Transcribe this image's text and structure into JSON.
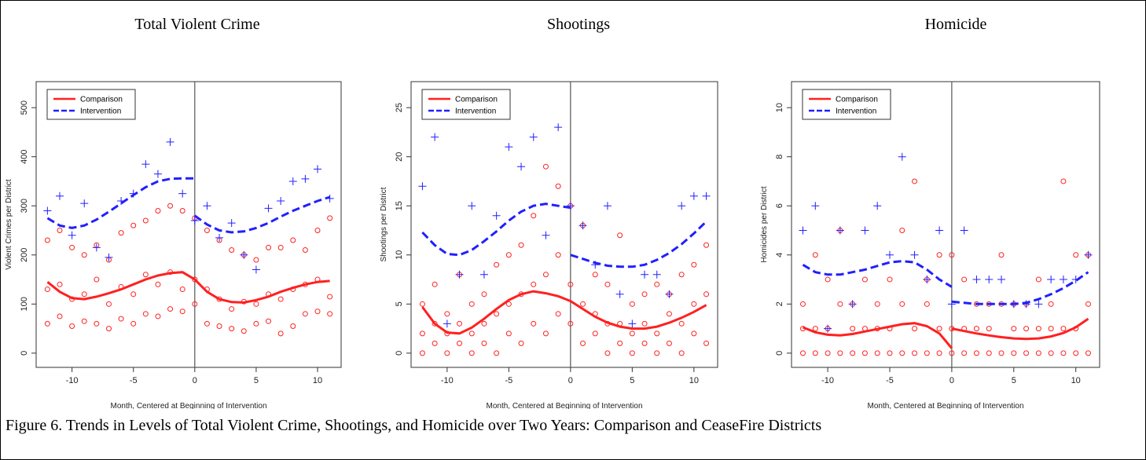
{
  "caption": "Figure 6.  Trends in Levels of Total Violent Crime, Shootings, and Homicide over Two Years:  Comparison and CeaseFire Districts",
  "chart_data": [
    {
      "type": "scatter",
      "title": "Total Violent Crime",
      "x_label": "Month, Centered at Beginning of Intervention",
      "y_label": "Violent Crimes per District",
      "xlim": [
        -12.92,
        11.92
      ],
      "xticks": [
        -10,
        -5,
        0,
        5,
        10
      ],
      "ylim": [
        -29,
        553
      ],
      "yticks": [
        0,
        100,
        200,
        300,
        400,
        500
      ],
      "vline": 0,
      "legend": "upper left",
      "series": [
        {
          "name": "Comparison",
          "color": "#ff2020",
          "marker": "circle",
          "line_style": "solid",
          "x": [
            -12,
            -12,
            -12,
            -11,
            -11,
            -11,
            -10,
            -10,
            -10,
            -9,
            -9,
            -9,
            -8,
            -8,
            -8,
            -7,
            -7,
            -7,
            -6,
            -6,
            -6,
            -5,
            -5,
            -5,
            -4,
            -4,
            -4,
            -3,
            -3,
            -3,
            -2,
            -2,
            -2,
            -1,
            -1,
            -1,
            0,
            0,
            0,
            1,
            1,
            1,
            2,
            2,
            2,
            3,
            3,
            3,
            4,
            4,
            4,
            5,
            5,
            5,
            6,
            6,
            6,
            7,
            7,
            7,
            8,
            8,
            8,
            9,
            9,
            9,
            10,
            10,
            10,
            11,
            11,
            11
          ],
          "values": [
            60,
            130,
            230,
            75,
            140,
            250,
            55,
            110,
            215,
            65,
            120,
            200,
            60,
            150,
            220,
            50,
            100,
            190,
            70,
            135,
            245,
            60,
            120,
            260,
            80,
            160,
            270,
            75,
            140,
            290,
            90,
            165,
            300,
            85,
            130,
            290,
            100,
            150,
            275,
            60,
            130,
            250,
            55,
            110,
            230,
            50,
            90,
            210,
            45,
            105,
            200,
            60,
            100,
            190,
            65,
            120,
            215,
            40,
            110,
            215,
            55,
            130,
            230,
            80,
            140,
            210,
            85,
            150,
            250,
            80,
            115,
            275
          ],
          "fit_x": [
            -12,
            -11,
            -10,
            -9,
            -8,
            -7,
            -6,
            -5,
            -4,
            -3,
            -2,
            -1,
            0,
            1,
            2,
            3,
            4,
            5,
            6,
            7,
            8,
            9,
            10,
            11
          ],
          "fit_values": [
            145,
            125,
            112,
            110,
            115,
            122,
            130,
            140,
            150,
            158,
            163,
            165,
            150,
            125,
            110,
            104,
            103,
            108,
            115,
            125,
            133,
            140,
            145,
            147
          ]
        },
        {
          "name": "Intervention",
          "color": "#2020ff",
          "marker": "plus",
          "line_style": "dashed",
          "x": [
            -12,
            -11,
            -10,
            -9,
            -8,
            -7,
            -6,
            -5,
            -4,
            -3,
            -2,
            -1,
            0,
            1,
            2,
            3,
            4,
            5,
            6,
            7,
            8,
            9,
            10,
            11
          ],
          "values": [
            290,
            320,
            240,
            305,
            215,
            195,
            310,
            325,
            385,
            365,
            430,
            325,
            270,
            300,
            235,
            265,
            200,
            170,
            295,
            310,
            350,
            355,
            375,
            315
          ],
          "fit_x": [
            -12,
            -11,
            -10,
            -9,
            -8,
            -7,
            -6,
            -5,
            -4,
            -3,
            -2,
            -1,
            0,
            null,
            0,
            1,
            2,
            3,
            4,
            5,
            6,
            7,
            8,
            9,
            10,
            11
          ],
          "fit_values": [
            275,
            260,
            255,
            260,
            272,
            288,
            305,
            322,
            338,
            350,
            355,
            356,
            356,
            null,
            280,
            262,
            250,
            246,
            248,
            255,
            265,
            278,
            290,
            300,
            310,
            318
          ]
        }
      ]
    },
    {
      "type": "scatter",
      "title": "Shootings",
      "x_label": "Month, Centered at Beginning of Intervention",
      "y_label": "Shootings per District",
      "xlim": [
        -12.92,
        11.92
      ],
      "xticks": [
        -10,
        -5,
        0,
        5,
        10
      ],
      "ylim": [
        -1.45,
        27.65
      ],
      "yticks": [
        0,
        5,
        10,
        15,
        20,
        25
      ],
      "vline": 0,
      "legend": "upper left",
      "series": [
        {
          "name": "Comparison",
          "color": "#ff2020",
          "marker": "circle",
          "line_style": "solid",
          "x": [
            -12,
            -12,
            -12,
            -11,
            -11,
            -11,
            -10,
            -10,
            -10,
            -9,
            -9,
            -9,
            -8,
            -8,
            -8,
            -7,
            -7,
            -7,
            -6,
            -6,
            -6,
            -5,
            -5,
            -5,
            -4,
            -4,
            -4,
            -3,
            -3,
            -3,
            -2,
            -2,
            -2,
            -1,
            -1,
            -1,
            0,
            0,
            0,
            1,
            1,
            1,
            2,
            2,
            2,
            3,
            3,
            3,
            4,
            4,
            4,
            5,
            5,
            5,
            6,
            6,
            6,
            7,
            7,
            7,
            8,
            8,
            8,
            9,
            9,
            9,
            10,
            10,
            10,
            11,
            11,
            11
          ],
          "values": [
            0,
            2,
            5,
            1,
            3,
            7,
            0,
            2,
            4,
            1,
            3,
            8,
            0,
            2,
            5,
            1,
            3,
            6,
            0,
            4,
            9,
            2,
            5,
            10,
            1,
            6,
            11,
            3,
            7,
            14,
            2,
            8,
            19,
            4,
            10,
            17,
            3,
            7,
            15,
            1,
            5,
            13,
            2,
            4,
            8,
            0,
            3,
            7,
            1,
            3,
            12,
            0,
            2,
            5,
            1,
            3,
            6,
            0,
            2,
            7,
            1,
            4,
            6,
            0,
            3,
            8,
            2,
            5,
            9,
            1,
            6,
            11
          ],
          "fit_x": [
            -12,
            -11,
            -10,
            -9,
            -8,
            -7,
            -6,
            -5,
            -4,
            -3,
            -2,
            -1,
            0,
            1,
            2,
            3,
            4,
            5,
            6,
            7,
            8,
            9,
            10,
            11
          ],
          "fit_values": [
            4.7,
            3,
            2.1,
            2,
            2.6,
            3.5,
            4.5,
            5.4,
            6,
            6.3,
            6.1,
            5.8,
            5.3,
            4.5,
            3.7,
            3.1,
            2.7,
            2.5,
            2.5,
            2.7,
            3.1,
            3.6,
            4.2,
            4.9
          ]
        },
        {
          "name": "Intervention",
          "color": "#2020ff",
          "marker": "plus",
          "line_style": "dashed",
          "x": [
            -12,
            -11,
            -10,
            -9,
            -8,
            -7,
            -6,
            -5,
            -4,
            -3,
            -2,
            -1,
            0,
            1,
            2,
            3,
            4,
            5,
            6,
            7,
            8,
            9,
            10,
            11
          ],
          "values": [
            17,
            22,
            3,
            8,
            15,
            8,
            14,
            21,
            19,
            22,
            12,
            23,
            15,
            13,
            9,
            15,
            6,
            3,
            8,
            8,
            6,
            15,
            16,
            16
          ],
          "fit_x": [
            -12,
            -11,
            -10,
            -9,
            -8,
            -7,
            -6,
            -5,
            -4,
            -3,
            -2,
            -1,
            0,
            null,
            0,
            1,
            2,
            3,
            4,
            5,
            6,
            7,
            8,
            9,
            10,
            11
          ],
          "fit_values": [
            12.3,
            11,
            10.1,
            10,
            10.5,
            11.4,
            12.4,
            13.5,
            14.4,
            15,
            15.2,
            15,
            14.8,
            null,
            10,
            9.6,
            9.2,
            8.9,
            8.8,
            8.8,
            9,
            9.5,
            10.2,
            11.1,
            12.2,
            13.4
          ]
        }
      ]
    },
    {
      "type": "scatter",
      "title": "Homicide",
      "x_label": "Month, Centered at Beginning of Intervention",
      "y_label": "Homicides per District",
      "xlim": [
        -12.92,
        11.92
      ],
      "xticks": [
        -10,
        -5,
        0,
        5,
        10
      ],
      "ylim": [
        -0.58,
        11.06
      ],
      "yticks": [
        0,
        2,
        4,
        6,
        8,
        10
      ],
      "vline": 0,
      "legend": "upper left",
      "series": [
        {
          "name": "Comparison",
          "color": "#ff2020",
          "marker": "circle",
          "line_style": "solid",
          "x": [
            -12,
            -12,
            -12,
            -11,
            -11,
            -11,
            -10,
            -10,
            -10,
            -9,
            -9,
            -9,
            -8,
            -8,
            -8,
            -7,
            -7,
            -7,
            -6,
            -6,
            -6,
            -5,
            -5,
            -5,
            -4,
            -4,
            -4,
            -3,
            -3,
            -3,
            -2,
            -2,
            -2,
            -1,
            -1,
            -1,
            0,
            0,
            0,
            1,
            1,
            1,
            2,
            2,
            2,
            3,
            3,
            3,
            4,
            4,
            4,
            5,
            5,
            5,
            6,
            6,
            6,
            7,
            7,
            7,
            8,
            8,
            8,
            9,
            9,
            9,
            10,
            10,
            10,
            11,
            11,
            11
          ],
          "values": [
            0,
            1,
            2,
            0,
            1,
            4,
            0,
            1,
            3,
            0,
            2,
            5,
            0,
            1,
            2,
            0,
            1,
            3,
            0,
            1,
            2,
            0,
            1,
            3,
            0,
            2,
            5,
            0,
            1,
            7,
            0,
            2,
            3,
            0,
            1,
            4,
            0,
            1,
            4,
            0,
            1,
            3,
            0,
            1,
            2,
            0,
            1,
            2,
            0,
            2,
            4,
            0,
            1,
            2,
            0,
            1,
            2,
            0,
            1,
            3,
            0,
            1,
            2,
            0,
            1,
            7,
            0,
            1,
            4,
            0,
            2,
            4
          ],
          "fit_x": [
            -12,
            -11,
            -10,
            -9,
            -8,
            -7,
            -6,
            -5,
            -4,
            -3,
            -2,
            -1,
            0,
            null,
            0,
            1,
            2,
            3,
            4,
            5,
            6,
            7,
            8,
            9,
            10,
            11
          ],
          "fit_values": [
            1.05,
            0.85,
            0.75,
            0.72,
            0.78,
            0.88,
            0.98,
            1.08,
            1.18,
            1.22,
            1.1,
            0.8,
            0.2,
            null,
            1,
            0.9,
            0.8,
            0.72,
            0.65,
            0.6,
            0.58,
            0.6,
            0.68,
            0.82,
            1.05,
            1.4
          ]
        },
        {
          "name": "Intervention",
          "color": "#2020ff",
          "marker": "plus",
          "line_style": "dashed",
          "x": [
            -12,
            -11,
            -10,
            -9,
            -8,
            -7,
            -6,
            -5,
            -4,
            -3,
            -2,
            -1,
            0,
            1,
            2,
            3,
            4,
            5,
            6,
            7,
            8,
            9,
            10,
            11
          ],
          "values": [
            5,
            6,
            1,
            5,
            2,
            5,
            6,
            4,
            8,
            4,
            3,
            5,
            2,
            5,
            3,
            3,
            3,
            2,
            2,
            2,
            3,
            3,
            3,
            4
          ],
          "fit_x": [
            -12,
            -11,
            -10,
            -9,
            -8,
            -7,
            -6,
            -5,
            -4,
            -3,
            -2,
            -1,
            0,
            null,
            0,
            1,
            2,
            3,
            4,
            5,
            6,
            7,
            8,
            9,
            10,
            11
          ],
          "fit_values": [
            3.6,
            3.3,
            3.2,
            3.2,
            3.3,
            3.4,
            3.55,
            3.7,
            3.75,
            3.7,
            3.4,
            3,
            2.7,
            null,
            2.1,
            2.05,
            2,
            2,
            2,
            2,
            2.05,
            2.2,
            2.4,
            2.65,
            2.95,
            3.3
          ]
        }
      ]
    }
  ]
}
